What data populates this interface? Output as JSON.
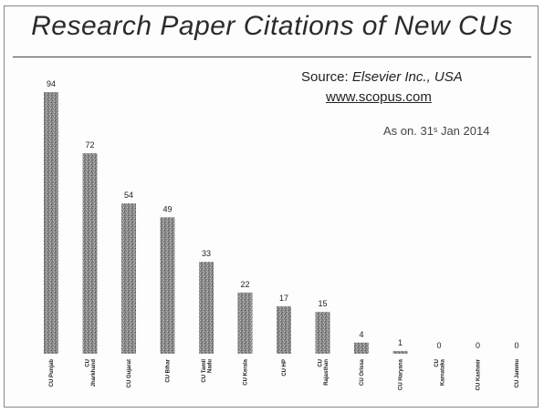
{
  "header": {
    "title": "Research Paper Citations of New CUs",
    "source_prefix": "Source: ",
    "source_org": "Elsevier Inc., USA",
    "source_url": "www.scopus.com",
    "as_on": "As on. 31ˢ Jan 2014"
  },
  "chart_data": {
    "type": "bar",
    "title": "Research Paper Citations of New CUs",
    "categories": [
      [
        "CU Punjab"
      ],
      [
        "CU",
        "Jharkhand"
      ],
      [
        "CU Gujarat"
      ],
      [
        "CU Bihar"
      ],
      [
        "CU Tamil",
        "Nadu"
      ],
      [
        "CU Kerala"
      ],
      [
        "CU HP"
      ],
      [
        "CU",
        "Rajasthan"
      ],
      [
        "CU Orissa"
      ],
      [
        "CU Haryana"
      ],
      [
        "CU",
        "Karnataka"
      ],
      [
        "CU Kashmir"
      ],
      [
        "CU Jammu"
      ]
    ],
    "values": [
      94,
      72,
      54,
      49,
      33,
      22,
      17,
      15,
      4,
      1,
      0,
      0,
      0
    ],
    "xlabel": "",
    "ylabel": "",
    "ylim": [
      0,
      94
    ],
    "grid": false,
    "data_labels": true,
    "bar_color": "#8c8c8c"
  }
}
